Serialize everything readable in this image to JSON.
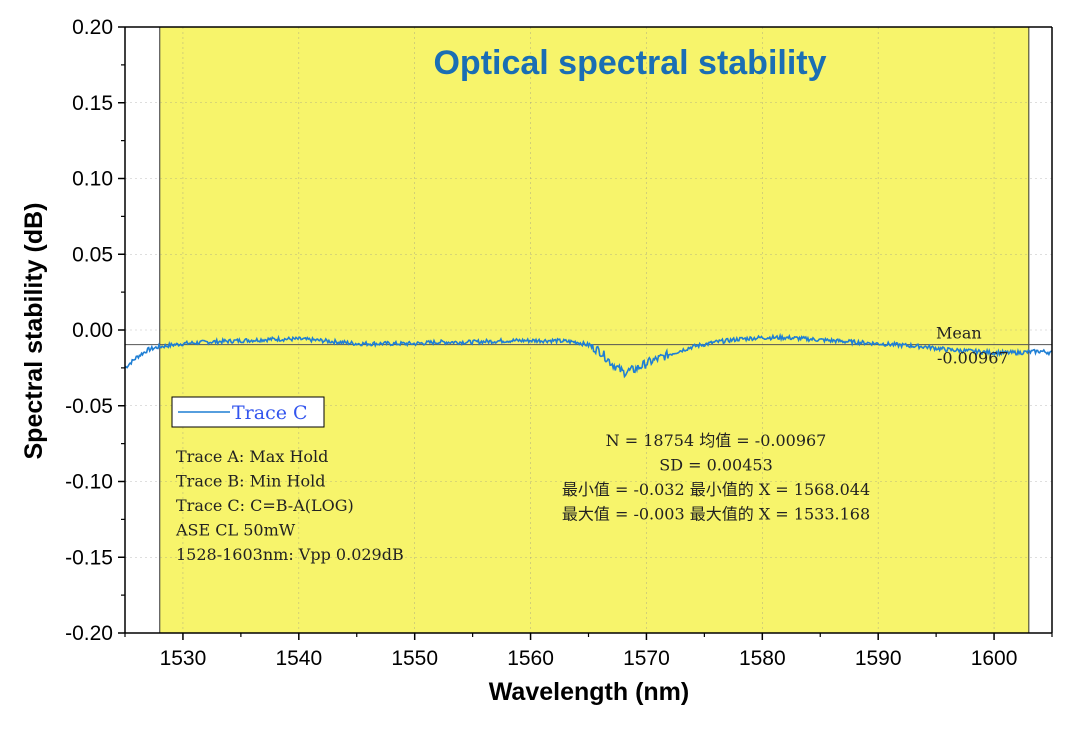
{
  "chart_data": {
    "type": "line",
    "title": "Optical spectral stability",
    "xlabel": "Wavelength (nm)",
    "ylabel": "Spectral stability (dB)",
    "xlim": [
      1525,
      1605
    ],
    "ylim": [
      -0.2,
      0.2
    ],
    "x_ticks": [
      1530,
      1540,
      1550,
      1560,
      1570,
      1580,
      1590,
      1600
    ],
    "y_ticks": [
      -0.2,
      -0.15,
      -0.1,
      -0.05,
      0.0,
      0.05,
      0.1,
      0.15,
      0.2
    ],
    "x_tick_labels": [
      "1530",
      "1540",
      "1550",
      "1560",
      "1570",
      "1580",
      "1590",
      "1600"
    ],
    "y_tick_labels": [
      "-0.20",
      "-0.15",
      "-0.10",
      "-0.05",
      "0.00",
      "0.05",
      "0.10",
      "0.15",
      "0.20"
    ],
    "highlight_range": [
      1528,
      1603
    ],
    "highlight_color": "#f7f46b",
    "series": [
      {
        "name": "Trace C",
        "color": "#1f7fd4",
        "x": [
          1525,
          1526,
          1527,
          1528,
          1529,
          1530,
          1532,
          1535,
          1538,
          1540,
          1542,
          1545,
          1548,
          1550,
          1552,
          1555,
          1558,
          1560,
          1562,
          1564,
          1565,
          1566,
          1567,
          1568,
          1569,
          1570,
          1572,
          1574,
          1576,
          1578,
          1580,
          1582,
          1584,
          1586,
          1588,
          1590,
          1592,
          1594,
          1596,
          1598,
          1600,
          1602,
          1604,
          1605
        ],
        "y": [
          -0.025,
          -0.018,
          -0.013,
          -0.011,
          -0.01,
          -0.009,
          -0.008,
          -0.007,
          -0.006,
          -0.006,
          -0.007,
          -0.009,
          -0.009,
          -0.009,
          -0.008,
          -0.008,
          -0.007,
          -0.007,
          -0.007,
          -0.008,
          -0.01,
          -0.014,
          -0.022,
          -0.028,
          -0.026,
          -0.022,
          -0.016,
          -0.011,
          -0.008,
          -0.006,
          -0.005,
          -0.005,
          -0.006,
          -0.007,
          -0.008,
          -0.009,
          -0.01,
          -0.011,
          -0.013,
          -0.014,
          -0.015,
          -0.015,
          -0.014,
          -0.015
        ]
      }
    ],
    "mean_line": {
      "value": -0.00967,
      "label": "Mean",
      "value_label": "-0.00967"
    },
    "legend": {
      "label": "Trace C",
      "position": "middle-left"
    },
    "notes_left": [
      "Trace A: Max Hold",
      "Trace B: Min Hold",
      "Trace C: C=B-A(LOG)",
      "ASE CL 50mW",
      "1528-1603nm: Vpp 0.029dB"
    ],
    "stats": [
      "N = 18754 均值 = -0.00967",
      "SD = 0.00453",
      "最小值 = -0.032 最小值的 X = 1568.044",
      "最大值 = -0.003 最大值的 X = 1533.168"
    ],
    "grid": true
  }
}
